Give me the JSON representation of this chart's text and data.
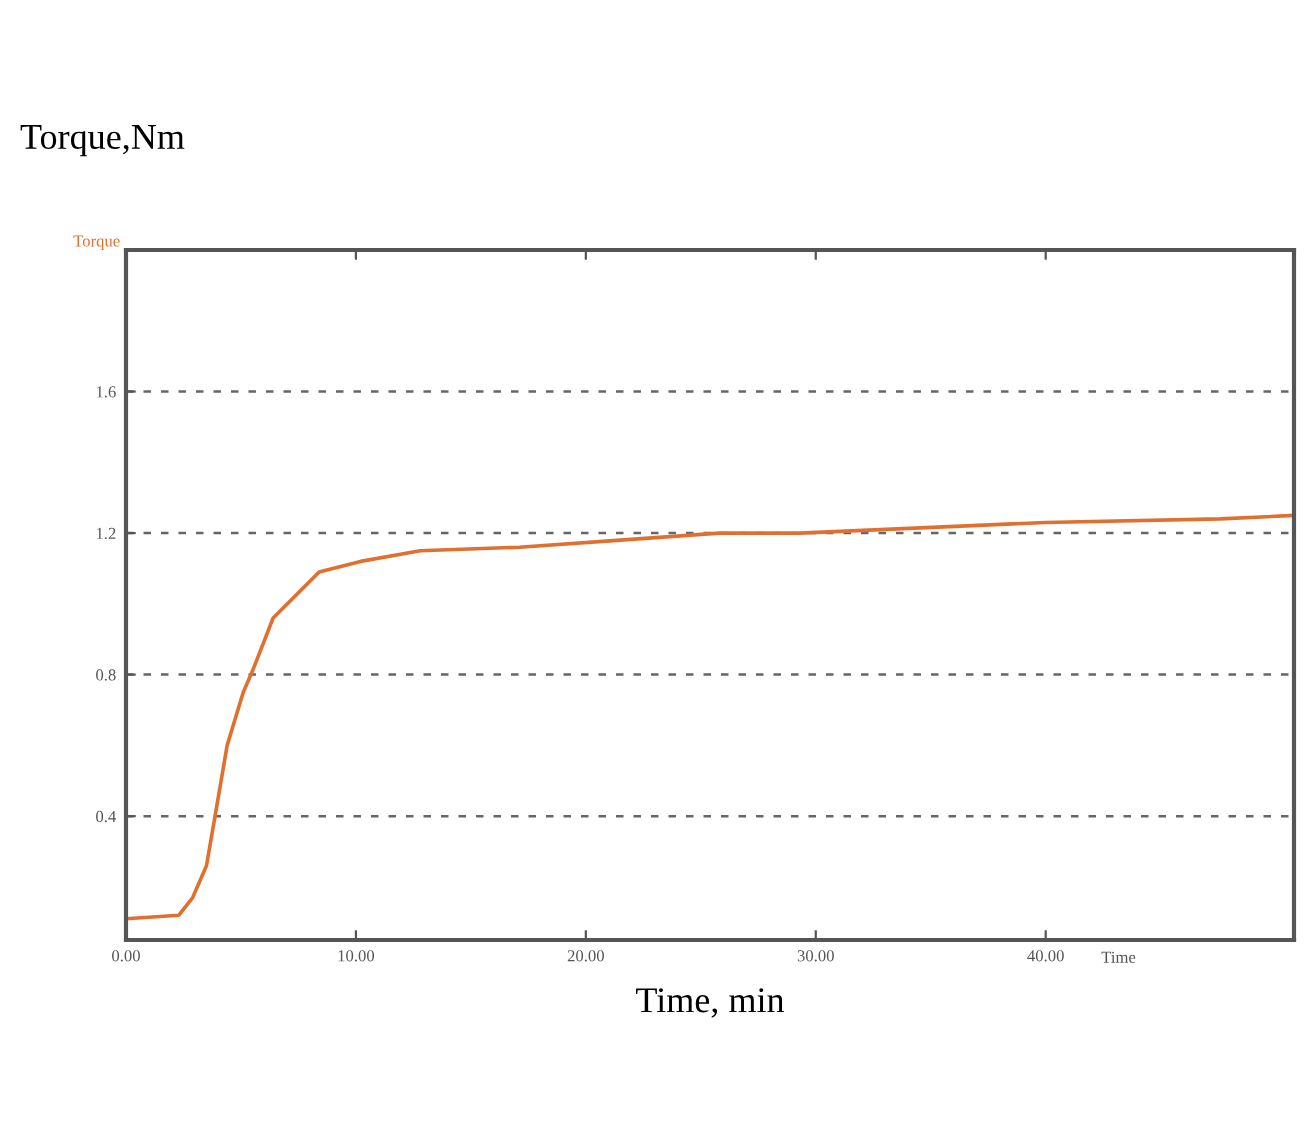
{
  "chart_data": {
    "type": "line",
    "title": "Torque,Nm",
    "xlabel": "Time, min",
    "ylabel": "Torque",
    "annotations": [
      "Time"
    ],
    "x": [
      0,
      2.3,
      2.9,
      3.5,
      3.9,
      4.4,
      5.1,
      5.5,
      6.4,
      8.4,
      10.2,
      12.8,
      17.1,
      21.5,
      25.8,
      29.3,
      40,
      47.6,
      50.8
    ],
    "series": [
      {
        "color": "#e07030",
        "values": [
          0.11,
          0.12,
          0.17,
          0.26,
          0.41,
          0.6,
          0.75,
          0.81,
          0.96,
          1.09,
          1.12,
          1.15,
          1.16,
          1.18,
          1.2,
          1.2,
          1.23,
          1.24,
          1.25
        ]
      }
    ],
    "xlim": [
      0,
      50.8
    ],
    "ylim": [
      0.05,
      2.0
    ],
    "xticks": [
      {
        "value": 0,
        "label": "0.00"
      },
      {
        "value": 10,
        "label": "10.00"
      },
      {
        "value": 20,
        "label": "20.00"
      },
      {
        "value": 30,
        "label": "30.00"
      },
      {
        "value": 40,
        "label": "40.00"
      }
    ],
    "yticks": [
      0.4,
      0.8,
      1.2,
      1.6
    ],
    "grid": "y",
    "line_style": "solid",
    "marker": "none",
    "legend": false
  }
}
